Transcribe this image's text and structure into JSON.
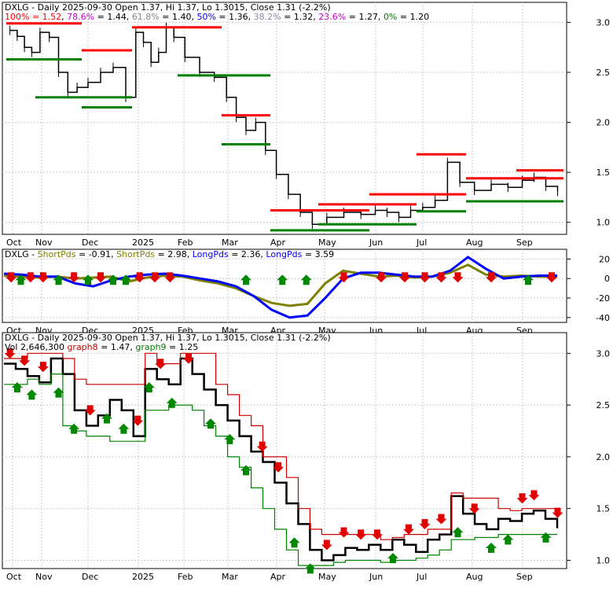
{
  "colors": {
    "price": "#000000",
    "fib_resistance": "#ff0000",
    "fib_support": "#008000",
    "fib_100": "#ff0000",
    "fib_786": "#cc00cc",
    "fib_618": "#888888",
    "fib_50": "#0000ff",
    "fib_382": "#8888aa",
    "fib_236": "#cc00cc",
    "fib_0": "#008000",
    "short_pds": "#808000",
    "long_pds": "#0000ff",
    "graph8": "#cc0000",
    "graph9": "#008000",
    "grid": "#cccccc"
  },
  "x_labels": [
    "Oct",
    "Nov",
    "Dec",
    "2025",
    "Feb",
    "Mar",
    "Apr",
    "May",
    "Jun",
    "Jul",
    "Aug",
    "Sep"
  ],
  "chart_data": [
    {
      "type": "line",
      "panel": "price-fibonacci",
      "title_segments": [
        {
          "text": "DXLG - Daily 2025-09-30 Open 1.37, Hi 1.37, Lo 1.3015, Close 1.31 (-2.2%)",
          "color": "#000000"
        }
      ],
      "legend_segments": [
        {
          "text": "100% = 1.52",
          "color": "#ff0000"
        },
        {
          "text": ", ",
          "color": "#000000"
        },
        {
          "text": "78.6%",
          "color": "#cc00cc"
        },
        {
          "text": " = 1.44, ",
          "color": "#000000"
        },
        {
          "text": "61.8%",
          "color": "#888888"
        },
        {
          "text": " = 1.40, ",
          "color": "#000000"
        },
        {
          "text": "50%",
          "color": "#0000ff"
        },
        {
          "text": " = 1.36, ",
          "color": "#000000"
        },
        {
          "text": "38.2%",
          "color": "#8888aa"
        },
        {
          "text": " = 1.32, ",
          "color": "#000000"
        },
        {
          "text": "23.6%",
          "color": "#cc00cc"
        },
        {
          "text": " = 1.27, ",
          "color": "#000000"
        },
        {
          "text": "0%",
          "color": "#008000"
        },
        {
          "text": " = 1.20",
          "color": "#000000"
        }
      ],
      "y_ticks": [
        "3.0",
        "2.5",
        "2.0",
        "1.5",
        "1.0"
      ],
      "ylim": [
        0.88,
        3.2
      ],
      "price_series": [
        [
          "Oct",
          2.92
        ],
        [
          "Oct",
          2.86
        ],
        [
          "Oct",
          2.75
        ],
        [
          "Oct",
          2.7
        ],
        [
          "Nov",
          2.9
        ],
        [
          "Nov",
          2.85
        ],
        [
          "Nov",
          2.5
        ],
        [
          "Nov",
          2.3
        ],
        [
          "Nov",
          2.35
        ],
        [
          "Dec",
          2.4
        ],
        [
          "Dec",
          2.5
        ],
        [
          "Dec",
          2.55
        ],
        [
          "Dec",
          2.25
        ],
        [
          "2025",
          2.9
        ],
        [
          "2025",
          2.8
        ],
        [
          "2025",
          2.6
        ],
        [
          "2025",
          2.7
        ],
        [
          "2025",
          2.95
        ],
        [
          "2025",
          2.85
        ],
        [
          "Feb",
          2.65
        ],
        [
          "Feb",
          2.5
        ],
        [
          "Feb",
          2.45
        ],
        [
          "Mar",
          2.25
        ],
        [
          "Mar",
          2.05
        ],
        [
          "Mar",
          1.92
        ],
        [
          "Mar",
          2.0
        ],
        [
          "Mar",
          1.72
        ],
        [
          "Apr",
          1.48
        ],
        [
          "Apr",
          1.28
        ],
        [
          "Apr",
          1.1
        ],
        [
          "Apr",
          0.98
        ],
        [
          "May",
          1.05
        ],
        [
          "May",
          1.1
        ],
        [
          "May",
          1.08
        ],
        [
          "Jun",
          1.12
        ],
        [
          "Jun",
          1.1
        ],
        [
          "Jun",
          1.05
        ],
        [
          "Jun",
          1.12
        ],
        [
          "Jul",
          1.15
        ],
        [
          "Jul",
          1.22
        ],
        [
          "Jul",
          1.6
        ],
        [
          "Jul",
          1.4
        ],
        [
          "Aug",
          1.32
        ],
        [
          "Aug",
          1.38
        ],
        [
          "Aug",
          1.35
        ],
        [
          "Sep",
          1.42
        ],
        [
          "Sep",
          1.45
        ],
        [
          "Sep",
          1.36
        ],
        [
          "Sep",
          1.31
        ]
      ],
      "resistance_levels": [
        {
          "from": "Oct",
          "to": "Nov",
          "value": 2.99
        },
        {
          "from": "Dec",
          "to": "Dec",
          "value": 2.72
        },
        {
          "from": "2025",
          "to": "Feb",
          "value": 2.95
        },
        {
          "from": "Mar",
          "to": "Mar",
          "value": 2.07
        },
        {
          "from": "Apr",
          "to": "May",
          "value": 1.12
        },
        {
          "from": "May",
          "to": "Jun",
          "value": 1.18
        },
        {
          "from": "Jun",
          "to": "Jul",
          "value": 1.28
        },
        {
          "from": "Jul",
          "to": "Jul",
          "value": 1.68
        },
        {
          "from": "Aug",
          "to": "Sep",
          "value": 1.44
        },
        {
          "from": "Sep",
          "to": "Sep",
          "value": 1.52
        }
      ],
      "support_levels": [
        {
          "from": "Oct",
          "to": "Nov",
          "value": 2.63
        },
        {
          "from": "Nov",
          "to": "Dec",
          "value": 2.25
        },
        {
          "from": "Dec",
          "to": "Dec",
          "value": 2.15
        },
        {
          "from": "Feb",
          "to": "Mar",
          "value": 2.47
        },
        {
          "from": "Mar",
          "to": "Mar",
          "value": 1.78
        },
        {
          "from": "Apr",
          "to": "May",
          "value": 0.92
        },
        {
          "from": "May",
          "to": "Jun",
          "value": 0.98
        },
        {
          "from": "Jul",
          "to": "Jul",
          "value": 1.11
        },
        {
          "from": "Aug",
          "to": "Sep",
          "value": 1.21
        }
      ]
    },
    {
      "type": "line",
      "panel": "oscillator",
      "legend_segments": [
        {
          "text": "DXLG - ",
          "color": "#000000"
        },
        {
          "text": "ShortPds",
          "color": "#808000"
        },
        {
          "text": " = -0.91, ",
          "color": "#000000"
        },
        {
          "text": "ShortPds",
          "color": "#808000"
        },
        {
          "text": " = 2.98, ",
          "color": "#000000"
        },
        {
          "text": "LongPds",
          "color": "#0000ff"
        },
        {
          "text": " = 2.36, ",
          "color": "#000000"
        },
        {
          "text": "LongPds",
          "color": "#0000ff"
        },
        {
          "text": " = 3.59",
          "color": "#000000"
        }
      ],
      "y_ticks": [
        "20",
        "0",
        "-20",
        "-40"
      ],
      "ylim": [
        -45,
        30
      ],
      "series": [
        {
          "name": "ShortPds",
          "color": "#808000",
          "values": [
            3,
            2,
            1,
            2,
            0,
            1,
            2,
            -3,
            1,
            3,
            2,
            -2,
            -5,
            -10,
            -18,
            -25,
            -28,
            -26,
            -5,
            8,
            5,
            2,
            3,
            1,
            2,
            6,
            14,
            4,
            2,
            3,
            2,
            2
          ]
        },
        {
          "name": "LongPds",
          "color": "#0000ff",
          "values": [
            5,
            4,
            2,
            2,
            -5,
            -8,
            -2,
            2,
            4,
            5,
            3,
            0,
            -3,
            -8,
            -18,
            -32,
            -40,
            -38,
            -20,
            0,
            6,
            6,
            4,
            2,
            2,
            8,
            22,
            10,
            0,
            2,
            3,
            3
          ]
        }
      ],
      "signals": [
        {
          "x": "Oct",
          "dir": "down"
        },
        {
          "x": "Oct",
          "dir": "up"
        },
        {
          "x": "Oct",
          "dir": "down"
        },
        {
          "x": "Nov",
          "dir": "down"
        },
        {
          "x": "Nov",
          "dir": "up"
        },
        {
          "x": "Nov",
          "dir": "down"
        },
        {
          "x": "Dec",
          "dir": "up"
        },
        {
          "x": "Dec",
          "dir": "down"
        },
        {
          "x": "Dec",
          "dir": "up"
        },
        {
          "x": "Dec",
          "dir": "up"
        },
        {
          "x": "2025",
          "dir": "down"
        },
        {
          "x": "2025",
          "dir": "down"
        },
        {
          "x": "2025",
          "dir": "down"
        },
        {
          "x": "Mar",
          "dir": "up"
        },
        {
          "x": "Apr",
          "dir": "up"
        },
        {
          "x": "Apr",
          "dir": "up"
        },
        {
          "x": "May",
          "dir": "down"
        },
        {
          "x": "Jun",
          "dir": "down"
        },
        {
          "x": "Jun",
          "dir": "down"
        },
        {
          "x": "Jul",
          "dir": "down"
        },
        {
          "x": "Jul",
          "dir": "down"
        },
        {
          "x": "Jul",
          "dir": "down"
        },
        {
          "x": "Aug",
          "dir": "down"
        },
        {
          "x": "Sep",
          "dir": "up"
        },
        {
          "x": "Sep",
          "dir": "down"
        }
      ]
    },
    {
      "type": "line",
      "panel": "price-signals",
      "legend_segments": [
        {
          "text": "DXLG - Daily 2025-09-30 Open 1.37, Hi 1.37, Lo 1.3015, Close 1.31 (-2.2%)",
          "color": "#000000"
        }
      ],
      "legend2_segments": [
        {
          "text": "Vol 2,646,300 ",
          "color": "#000000"
        },
        {
          "text": "graph8",
          "color": "#cc0000"
        },
        {
          "text": " = 1.47, ",
          "color": "#000000"
        },
        {
          "text": "graph9",
          "color": "#008000"
        },
        {
          "text": " = 1.25",
          "color": "#000000"
        }
      ],
      "y_ticks": [
        "3.0",
        "2.5",
        "2.0",
        "1.5",
        "1.0"
      ],
      "ylim": [
        0.92,
        3.2
      ],
      "series": [
        {
          "name": "Close",
          "color": "#000000",
          "values": [
            2.9,
            2.85,
            2.78,
            2.72,
            2.95,
            2.8,
            2.45,
            2.3,
            2.4,
            2.55,
            2.45,
            2.2,
            2.85,
            2.75,
            2.7,
            2.95,
            2.8,
            2.65,
            2.5,
            2.35,
            2.2,
            2.05,
            1.95,
            1.75,
            1.55,
            1.35,
            1.1,
            1.0,
            1.05,
            1.12,
            1.1,
            1.15,
            1.1,
            1.2,
            1.15,
            1.08,
            1.2,
            1.25,
            1.62,
            1.45,
            1.35,
            1.3,
            1.4,
            1.38,
            1.45,
            1.48,
            1.4,
            1.31
          ]
        },
        {
          "name": "graph8",
          "color": "#cc0000",
          "values": [
            2.95,
            2.95,
            3.0,
            3.0,
            3.0,
            2.95,
            2.75,
            2.7,
            2.7,
            2.7,
            2.7,
            2.7,
            3.0,
            2.9,
            2.9,
            3.0,
            3.0,
            3.0,
            2.7,
            2.6,
            2.4,
            2.3,
            2.0,
            2.0,
            1.8,
            1.5,
            1.3,
            1.25,
            1.25,
            1.25,
            1.25,
            1.25,
            1.2,
            1.22,
            1.25,
            1.25,
            1.3,
            1.3,
            1.65,
            1.6,
            1.6,
            1.6,
            1.5,
            1.48,
            1.5,
            1.5,
            1.5,
            1.47
          ]
        },
        {
          "name": "graph9",
          "color": "#008000",
          "values": [
            2.7,
            2.7,
            2.75,
            2.7,
            2.8,
            2.3,
            2.25,
            2.2,
            2.2,
            2.15,
            2.15,
            2.15,
            2.45,
            2.45,
            2.5,
            2.5,
            2.45,
            2.3,
            2.2,
            2.0,
            1.9,
            1.7,
            1.5,
            1.3,
            1.1,
            0.95,
            0.95,
            0.95,
            0.98,
            1.0,
            1.0,
            1.0,
            0.98,
            1.0,
            1.0,
            1.02,
            1.05,
            1.1,
            1.2,
            1.2,
            1.22,
            1.22,
            1.25,
            1.25,
            1.25,
            1.25,
            1.25,
            1.25
          ]
        }
      ],
      "signals": [
        {
          "x": "Oct",
          "dir": "down"
        },
        {
          "x": "Oct",
          "dir": "up"
        },
        {
          "x": "Oct",
          "dir": "down"
        },
        {
          "x": "Oct",
          "dir": "up"
        },
        {
          "x": "Nov",
          "dir": "down"
        },
        {
          "x": "Nov",
          "dir": "up"
        },
        {
          "x": "Nov",
          "dir": "up"
        },
        {
          "x": "Dec",
          "dir": "down"
        },
        {
          "x": "Dec",
          "dir": "up"
        },
        {
          "x": "Dec",
          "dir": "up"
        },
        {
          "x": "2025",
          "dir": "down"
        },
        {
          "x": "2025",
          "dir": "up"
        },
        {
          "x": "2025",
          "dir": "down"
        },
        {
          "x": "2025",
          "dir": "up"
        },
        {
          "x": "Feb",
          "dir": "down"
        },
        {
          "x": "Feb",
          "dir": "up"
        },
        {
          "x": "Mar",
          "dir": "up"
        },
        {
          "x": "Mar",
          "dir": "up"
        },
        {
          "x": "Mar",
          "dir": "down"
        },
        {
          "x": "Apr",
          "dir": "down"
        },
        {
          "x": "Apr",
          "dir": "up"
        },
        {
          "x": "Apr",
          "dir": "up"
        },
        {
          "x": "May",
          "dir": "down"
        },
        {
          "x": "May",
          "dir": "down"
        },
        {
          "x": "May",
          "dir": "down"
        },
        {
          "x": "Jun",
          "dir": "down"
        },
        {
          "x": "Jun",
          "dir": "up"
        },
        {
          "x": "Jun",
          "dir": "down"
        },
        {
          "x": "Jul",
          "dir": "down"
        },
        {
          "x": "Jul",
          "dir": "down"
        },
        {
          "x": "Jul",
          "dir": "up"
        },
        {
          "x": "Aug",
          "dir": "down"
        },
        {
          "x": "Aug",
          "dir": "up"
        },
        {
          "x": "Aug",
          "dir": "up"
        },
        {
          "x": "Sep",
          "dir": "down"
        },
        {
          "x": "Sep",
          "dir": "down"
        },
        {
          "x": "Sep",
          "dir": "up"
        },
        {
          "x": "Sep",
          "dir": "down"
        }
      ]
    }
  ]
}
